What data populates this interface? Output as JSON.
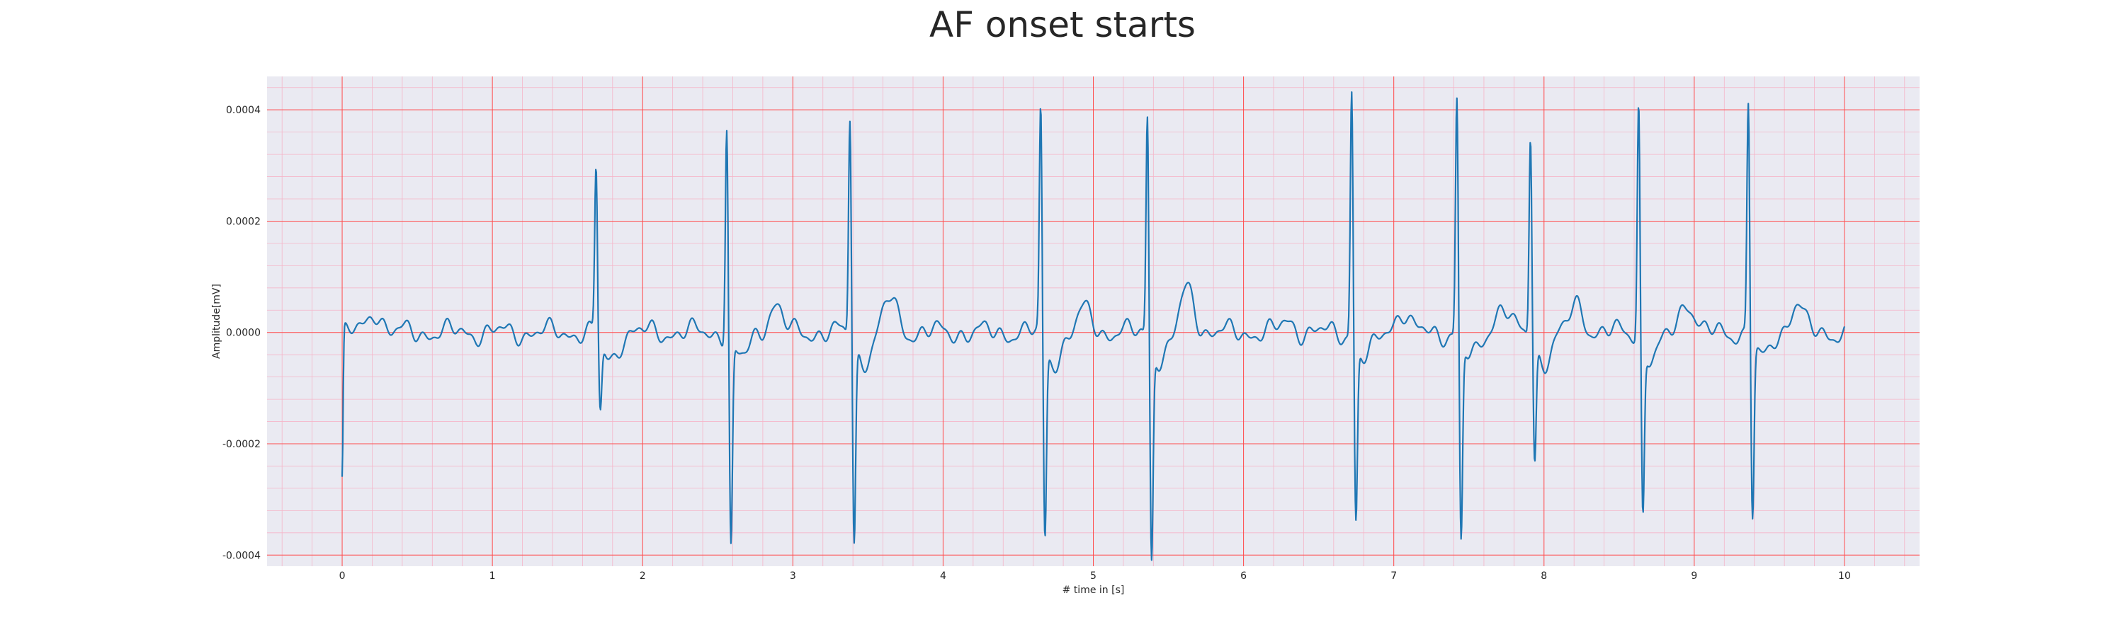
{
  "chart_data": {
    "type": "line",
    "title": "AF onset starts",
    "xlabel": "# time in [s]",
    "ylabel": "Amplitude[mV]",
    "xlim": [
      -0.5,
      10.5
    ],
    "ylim": [
      -0.00042,
      0.00046
    ],
    "xticks": [
      0,
      1,
      2,
      3,
      4,
      5,
      6,
      7,
      8,
      9,
      10
    ],
    "xtick_labels": [
      "0",
      "1",
      "2",
      "3",
      "4",
      "5",
      "6",
      "7",
      "8",
      "9",
      "10"
    ],
    "yticks": [
      -0.0004,
      -0.0002,
      0.0,
      0.0002,
      0.0004
    ],
    "ytick_labels": [
      "-0.0004",
      "-0.0002",
      "0.0000",
      "0.0002",
      "0.0004"
    ],
    "grid": {
      "major": true,
      "minor": true,
      "major_color": "#ff4d4d",
      "minor_color": "#f5b5c8"
    },
    "background": "#eaeaf2",
    "series": [
      {
        "color": "#1f77b4",
        "beats": [
          {
            "t": 1.69,
            "r": 0.000305,
            "s": -0.000125
          },
          {
            "t": 2.56,
            "r": 0.00039,
            "s": -0.00037
          },
          {
            "t": 3.38,
            "r": 0.000405,
            "s": -0.000355
          },
          {
            "t": 4.65,
            "r": 0.00041,
            "s": -0.00035
          },
          {
            "t": 5.36,
            "r": 0.00041,
            "s": -0.00038
          },
          {
            "t": 6.72,
            "r": 0.000455,
            "s": -0.000315
          },
          {
            "t": 7.42,
            "r": 0.000435,
            "s": -0.00036
          },
          {
            "t": 7.91,
            "r": 0.00037,
            "s": -0.00021
          },
          {
            "t": 8.63,
            "r": 0.00043,
            "s": -0.000305
          },
          {
            "t": 9.36,
            "r": 0.00043,
            "s": -0.00031
          }
        ],
        "t_waves": [
          {
            "t": 0.22,
            "a": 4e-05
          },
          {
            "t": 2.88,
            "a": 5e-05
          },
          {
            "t": 3.65,
            "a": 6e-05
          },
          {
            "t": 4.95,
            "a": 4e-05
          },
          {
            "t": 5.63,
            "a": 8e-05
          },
          {
            "t": 6.3,
            "a": 2e-05
          },
          {
            "t": 7.05,
            "a": 4e-05
          },
          {
            "t": 7.72,
            "a": 5e-05
          },
          {
            "t": 8.22,
            "a": 5e-05
          },
          {
            "t": 8.95,
            "a": 6e-05
          },
          {
            "t": 9.68,
            "a": 5e-05
          }
        ],
        "start_point": {
          "t": 0.0,
          "v": -0.00027
        },
        "end_point": {
          "t": 10.0,
          "v": -1e-05
        }
      }
    ]
  }
}
